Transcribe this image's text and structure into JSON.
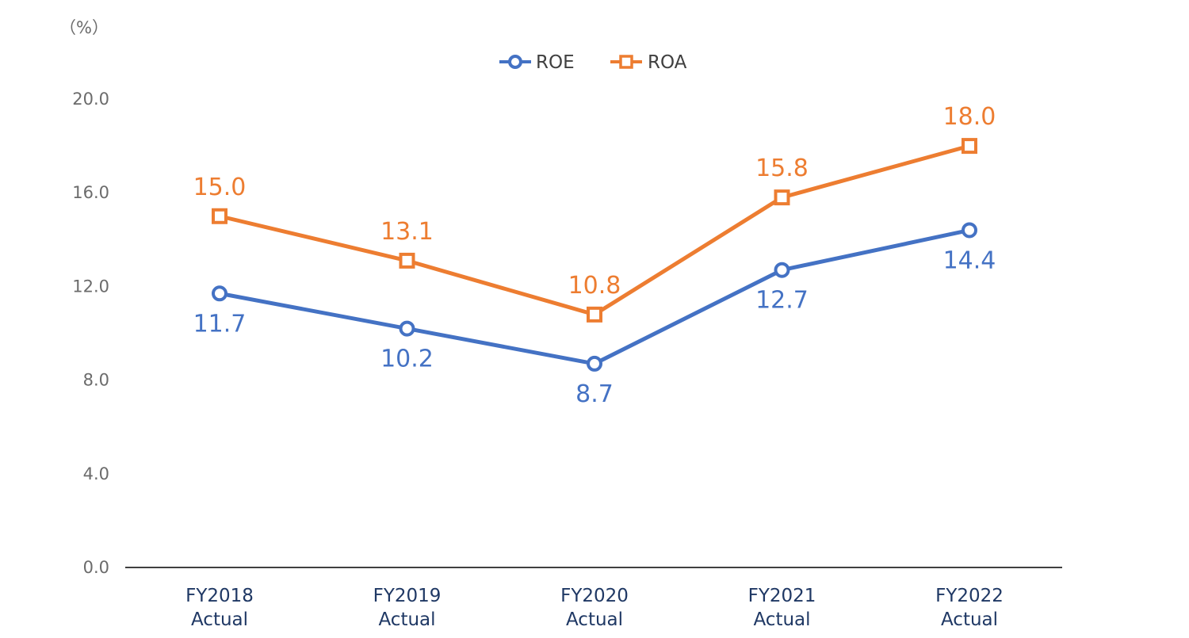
{
  "chart_data": {
    "type": "line",
    "unit_label": "（%）",
    "categories": [
      [
        "FY2018",
        "Actual"
      ],
      [
        "FY2019",
        "Actual"
      ],
      [
        "FY2020",
        "Actual"
      ],
      [
        "FY2021",
        "Actual"
      ],
      [
        "FY2022",
        "Actual"
      ]
    ],
    "ylim": [
      0,
      20
    ],
    "yticks": [
      "0.0",
      "4.0",
      "8.0",
      "12.0",
      "16.0",
      "20.0"
    ],
    "grid": false,
    "legend_position": "top-center",
    "series": [
      {
        "name": "ROE",
        "values": [
          11.7,
          10.2,
          8.7,
          12.7,
          14.4
        ],
        "labels": [
          "11.7",
          "10.2",
          "8.7",
          "12.7",
          "14.4"
        ],
        "color": "#4472c4",
        "marker": "circle",
        "label_position": "below"
      },
      {
        "name": "ROA",
        "values": [
          15.0,
          13.1,
          10.8,
          15.8,
          18.0
        ],
        "labels": [
          "15.0",
          "13.1",
          "10.8",
          "15.8",
          "18.0"
        ],
        "color": "#ed7d31",
        "marker": "square",
        "label_position": "above"
      }
    ]
  }
}
